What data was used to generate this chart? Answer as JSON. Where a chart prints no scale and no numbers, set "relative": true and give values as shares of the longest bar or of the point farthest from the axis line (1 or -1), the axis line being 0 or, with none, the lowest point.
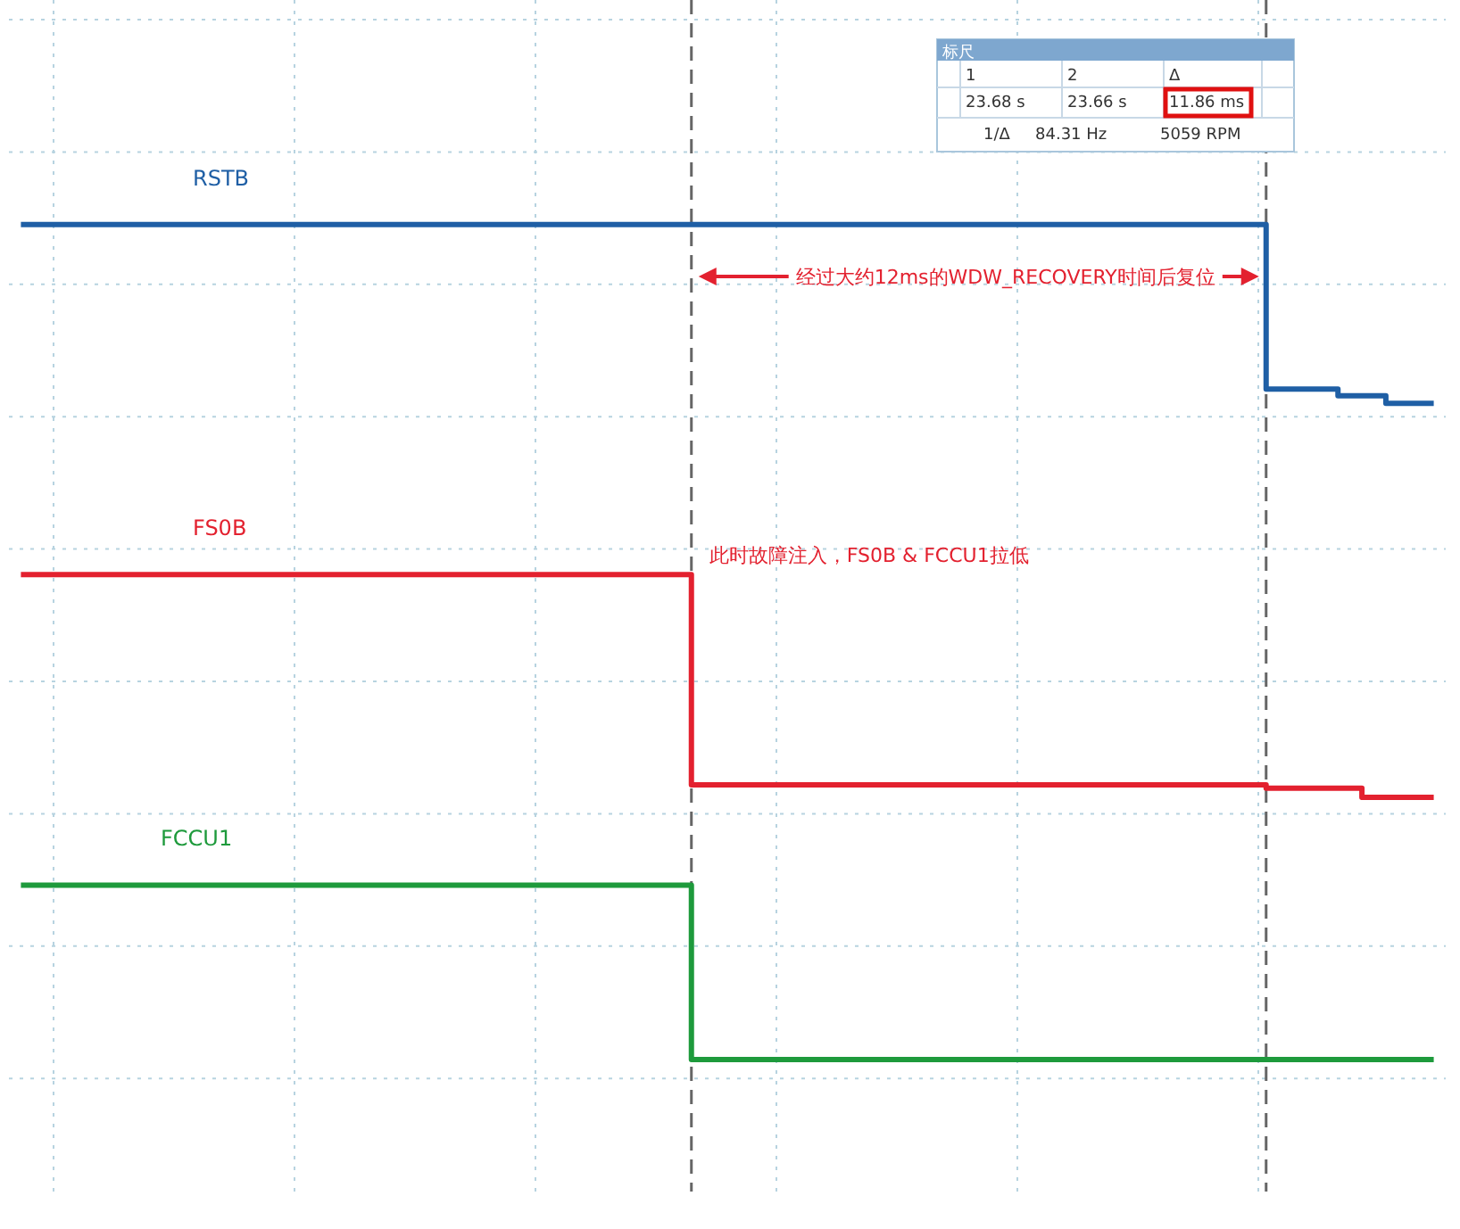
{
  "chart_data": {
    "type": "step",
    "relative": true,
    "grid": true,
    "legend": false,
    "marker": "none",
    "line_style": "solid",
    "categories": [
      null,
      null,
      null,
      null,
      null,
      null,
      null,
      null,
      null,
      null,
      null,
      null,
      null,
      null,
      null,
      null,
      null,
      null,
      null,
      null,
      null,
      null,
      null,
      null,
      null,
      null,
      null,
      null,
      null,
      null,
      null,
      null,
      null,
      null,
      null,
      null,
      null,
      null,
      null,
      null,
      null,
      null,
      null,
      null,
      null,
      null,
      null,
      null,
      null,
      null,
      null,
      null,
      null,
      null,
      null,
      null,
      null,
      null,
      null,
      null
    ],
    "series": [
      {
        "name": "RSTB",
        "color": "#1f5fa5",
        "values": [
          1,
          1,
          1,
          1,
          1,
          1,
          1,
          1,
          1,
          1,
          1,
          1,
          1,
          1,
          1,
          1,
          1,
          1,
          1,
          1,
          1,
          1,
          1,
          1,
          1,
          1,
          1,
          1,
          1,
          1,
          1,
          1,
          1,
          1,
          1,
          1,
          1,
          1,
          1,
          1,
          1,
          1,
          1,
          1,
          1,
          1,
          1,
          1,
          1,
          1,
          1,
          1,
          0.803,
          0.803,
          0.803,
          0.795,
          0.795,
          0.786,
          0.786,
          0.786
        ]
      },
      {
        "name": "FS0B",
        "color": "#e3212f",
        "values": [
          0.581,
          0.581,
          0.581,
          0.581,
          0.581,
          0.581,
          0.581,
          0.581,
          0.581,
          0.581,
          0.581,
          0.581,
          0.581,
          0.581,
          0.581,
          0.581,
          0.581,
          0.581,
          0.581,
          0.581,
          0.581,
          0.581,
          0.581,
          0.581,
          0.581,
          0.581,
          0.581,
          0.581,
          0.329,
          0.329,
          0.329,
          0.329,
          0.329,
          0.329,
          0.329,
          0.329,
          0.329,
          0.329,
          0.329,
          0.329,
          0.329,
          0.329,
          0.329,
          0.329,
          0.329,
          0.329,
          0.329,
          0.329,
          0.329,
          0.329,
          0.329,
          0.329,
          0.325,
          0.325,
          0.325,
          0.325,
          0.314,
          0.314,
          0.314,
          0.314
        ]
      },
      {
        "name": "FCCU1",
        "color": "#1e9a3c",
        "values": [
          0.209,
          0.209,
          0.209,
          0.209,
          0.209,
          0.209,
          0.209,
          0.209,
          0.209,
          0.209,
          0.209,
          0.209,
          0.209,
          0.209,
          0.209,
          0.209,
          0.209,
          0.209,
          0.209,
          0.209,
          0.209,
          0.209,
          0.209,
          0.209,
          0.209,
          0.209,
          0.209,
          0.209,
          0,
          0,
          0,
          0,
          0,
          0,
          0,
          0,
          0,
          0,
          0,
          0,
          0,
          0,
          0,
          0,
          0,
          0,
          0,
          0,
          0,
          0,
          0,
          0,
          0,
          0,
          0,
          0,
          0,
          0,
          0,
          0
        ]
      }
    ],
    "annotations": [
      "经过大约12ms的WDW_RECOVERY时间后复位",
      "此时故障注入，FS0B & FCCU1拉低",
      "标尺",
      "1",
      "2",
      "Δ",
      "23.68 s",
      "23.66 s",
      "11.86 ms",
      "1/Δ",
      "84.31 Hz",
      "5059 RPM"
    ]
  }
}
